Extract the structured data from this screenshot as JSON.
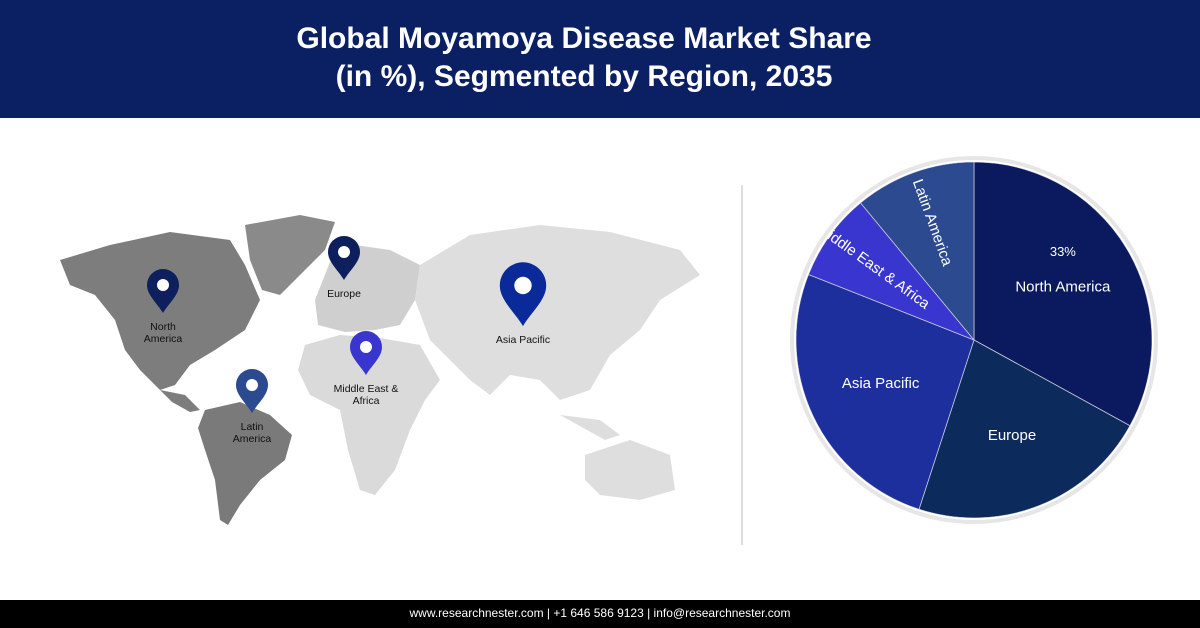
{
  "header": {
    "title_lines": [
      "Global Moyamoya Disease Market Share",
      "(in %), Segmented by Region, 2035"
    ]
  },
  "map": {
    "pins": [
      {
        "label_lines": [
          "North",
          "America"
        ]
      },
      {
        "label_lines": [
          "Europe"
        ]
      },
      {
        "label_lines": [
          "Asia Pacific"
        ]
      },
      {
        "label_lines": [
          "Middle East &",
          "Africa"
        ]
      },
      {
        "label_lines": [
          "Latin",
          "America"
        ]
      }
    ]
  },
  "chart_data": {
    "type": "pie",
    "categories": [
      "North America",
      "Europe",
      "Asia Pacific",
      "Middle East & Africa",
      "Latin America"
    ],
    "values": [
      33,
      22,
      26,
      8,
      11
    ],
    "value_labels": [
      "33%",
      null,
      null,
      null,
      null
    ],
    "colors": [
      "#0b1a5e",
      "#0c2b5c",
      "#1d2f9c",
      "#3935cf",
      "#2b4a8f"
    ]
  },
  "footer": {
    "text": "www.researchnester.com | +1 646 586 9123 | info@researchnester.com"
  }
}
